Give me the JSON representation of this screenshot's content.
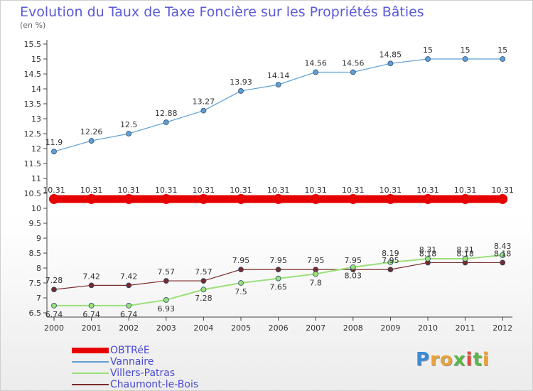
{
  "title": "Evolution du Taux de Taxe Foncière sur les Propriétés Bâties",
  "subtitle": "(en %)",
  "logo": {
    "text": "Proxiti",
    "colors": [
      "#3b8ad6",
      "#e8a33a",
      "#e8a33a",
      "#59b847",
      "#e84a3a",
      "#59b847",
      "#e8a33a"
    ]
  },
  "chart_data": {
    "type": "line",
    "title": "Evolution du Taux de Taxe Foncière sur les Propriétés Bâties",
    "ylabel": "(en %)",
    "xlabel": "",
    "x": [
      2000,
      2001,
      2002,
      2003,
      2004,
      2005,
      2006,
      2007,
      2008,
      2009,
      2010,
      2011,
      2012
    ],
    "ylim": [
      6.5,
      15.5
    ],
    "yticks": [
      "6.5",
      "7",
      "7.5",
      "8",
      "8.5",
      "9",
      "9.5",
      "10",
      "10.5",
      "11",
      "11.5",
      "12",
      "12.5",
      "13",
      "13.5",
      "14",
      "14.5",
      "15",
      "15.5"
    ],
    "grid": false,
    "legend_position": "bottom-left",
    "series": [
      {
        "name": "OBTRéE",
        "color": "#e60000",
        "values": [
          10.31,
          10.31,
          10.31,
          10.31,
          10.31,
          10.31,
          10.31,
          10.31,
          10.31,
          10.31,
          10.31,
          10.31,
          10.31
        ],
        "labels": [
          "10.31",
          "10.31",
          "10.31",
          "10.31",
          "10.31",
          "10.31",
          "10.31",
          "10.31",
          "10.31",
          "10.31",
          "10.31",
          "10.31",
          "10.31"
        ]
      },
      {
        "name": "Vannaire",
        "color": "#5f9fd4",
        "values": [
          11.9,
          12.26,
          12.5,
          12.88,
          13.27,
          13.93,
          14.14,
          14.56,
          14.56,
          14.85,
          15,
          15,
          15
        ],
        "labels": [
          "11.9",
          "12.26",
          "12.5",
          "12.88",
          "13.27",
          "13.93",
          "14.14",
          "14.56",
          "14.56",
          "14.85",
          "15",
          "15",
          "15"
        ]
      },
      {
        "name": "Villers-Patras",
        "color": "#9be07a",
        "values": [
          6.74,
          6.74,
          6.74,
          6.93,
          7.28,
          7.5,
          7.65,
          7.8,
          8.03,
          8.19,
          8.31,
          8.31,
          8.43
        ],
        "labels": [
          "6.74",
          "6.74",
          "6.74",
          "6.93",
          "7.28",
          "7.5",
          "7.65",
          "7.8",
          "8.03",
          "8.19",
          "8.31",
          "8.31",
          "8.43"
        ]
      },
      {
        "name": "Chaumont-le-Bois",
        "color": "#7a2a2a",
        "values": [
          7.28,
          7.42,
          7.42,
          7.57,
          7.57,
          7.95,
          7.95,
          7.95,
          7.95,
          7.95,
          8.18,
          8.18,
          8.18
        ],
        "labels": [
          "7.28",
          "7.42",
          "7.42",
          "7.57",
          "7.57",
          "7.95",
          "7.95",
          "7.95",
          "7.95",
          "7.95",
          "8.18",
          "8.18",
          "8.18"
        ]
      }
    ]
  }
}
